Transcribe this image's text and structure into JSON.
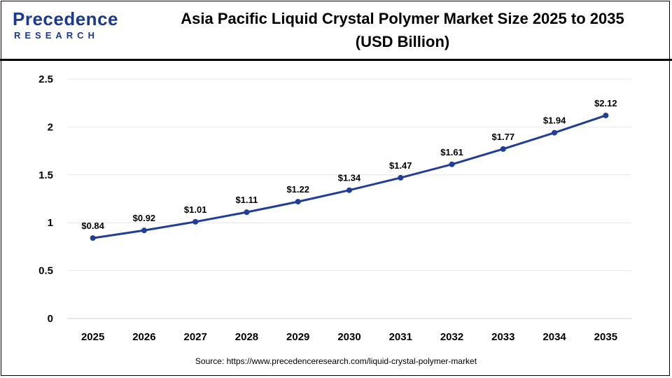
{
  "logo": {
    "name": "Precedence",
    "sub": "RESEARCH"
  },
  "title_line1": "Asia Pacific Liquid Crystal Polymer Market Size 2025 to 2035",
  "title_line2": "(USD Billion)",
  "source": "Source: https://www.precedenceresearch.com/liquid-crystal-polymer-market",
  "colors": {
    "line": "#1f3d99",
    "brand": "#1a3a8f",
    "grid": "#e6e6e6"
  },
  "chart_data": {
    "type": "line",
    "categories": [
      "2025",
      "2026",
      "2027",
      "2028",
      "2029",
      "2030",
      "2031",
      "2032",
      "2033",
      "2034",
      "2035"
    ],
    "values": [
      0.84,
      0.92,
      1.01,
      1.11,
      1.22,
      1.34,
      1.47,
      1.61,
      1.77,
      1.94,
      2.12
    ],
    "data_labels": [
      "$0.84",
      "$0.92",
      "$1.01",
      "$1.11",
      "$1.22",
      "$1.34",
      "$1.47",
      "$1.61",
      "$1.77",
      "$1.94",
      "$2.12"
    ],
    "y_ticks": [
      "0",
      "0.5",
      "1",
      "1.5",
      "2",
      "2.5"
    ],
    "ylim": [
      0,
      2.5
    ],
    "grid": true,
    "legend": "none",
    "title": "Asia Pacific Liquid Crystal Polymer Market Size 2025 to 2035 (USD Billion)",
    "xlabel": "",
    "ylabel": ""
  }
}
